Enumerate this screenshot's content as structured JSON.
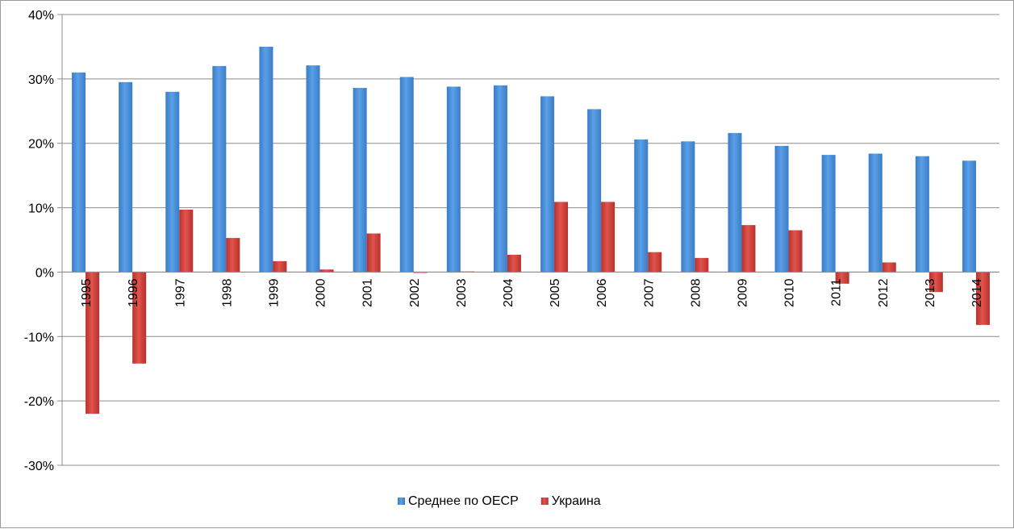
{
  "chart_data": {
    "type": "bar",
    "title": "",
    "xlabel": "",
    "ylabel": "",
    "ylim": [
      -30,
      40
    ],
    "y_ticks": [
      -30,
      -20,
      -10,
      0,
      10,
      20,
      30,
      40
    ],
    "y_tick_labels": [
      "-30%",
      "-20%",
      "-10%",
      "0%",
      "10%",
      "20%",
      "30%",
      "40%"
    ],
    "grid": true,
    "legend_position": "bottom",
    "categories": [
      "1995",
      "1996",
      "1997",
      "1998",
      "1999",
      "2000",
      "2001",
      "2002",
      "2003",
      "2004",
      "2005",
      "2006",
      "2007",
      "2008",
      "2009",
      "2010",
      "2011",
      "2012",
      "2013",
      "2014"
    ],
    "series": [
      {
        "name": "Среднее по ОЕСР",
        "color": "#4a8fd8",
        "values": [
          31.0,
          29.5,
          28.0,
          32.0,
          35.0,
          32.1,
          28.6,
          30.3,
          28.8,
          29.0,
          27.3,
          25.3,
          20.6,
          20.3,
          21.6,
          19.6,
          18.2,
          18.4,
          18.0,
          17.3
        ]
      },
      {
        "name": "Украина",
        "color": "#d9423b",
        "values": [
          -22.0,
          -14.2,
          9.7,
          5.3,
          1.7,
          0.4,
          6.0,
          -0.1,
          0.1,
          2.7,
          10.9,
          10.9,
          3.1,
          2.2,
          7.3,
          6.5,
          -1.8,
          1.5,
          -3.1,
          -8.2
        ]
      }
    ]
  }
}
